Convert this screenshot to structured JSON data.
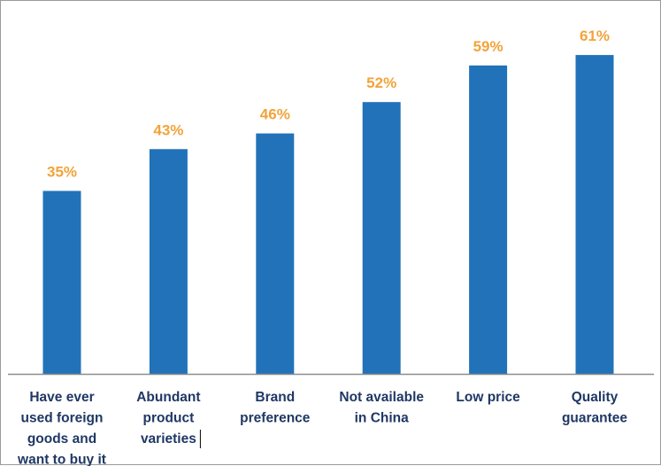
{
  "chart_data": {
    "type": "bar",
    "title": "",
    "xlabel": "",
    "ylabel": "",
    "categories": [
      [
        "Have ever",
        "used foreign",
        "goods and",
        "want to buy it"
      ],
      [
        "Abundant",
        "product",
        "varieties"
      ],
      [
        "Brand",
        "preference"
      ],
      [
        "Not available",
        "in China"
      ],
      [
        "Low price"
      ],
      [
        "Quality",
        "guarantee"
      ]
    ],
    "values": [
      35,
      43,
      46,
      52,
      59,
      61
    ],
    "value_labels": [
      "35%",
      "43%",
      "46%",
      "52%",
      "59%",
      "61%"
    ],
    "unit": "%",
    "ylim": [
      0,
      70
    ],
    "grid": false,
    "legend": "none"
  },
  "colors": {
    "bar": "#2272b9",
    "value_label": "#f2a33a",
    "axis": "#8c8c8c",
    "category_label": "#1f3864"
  }
}
